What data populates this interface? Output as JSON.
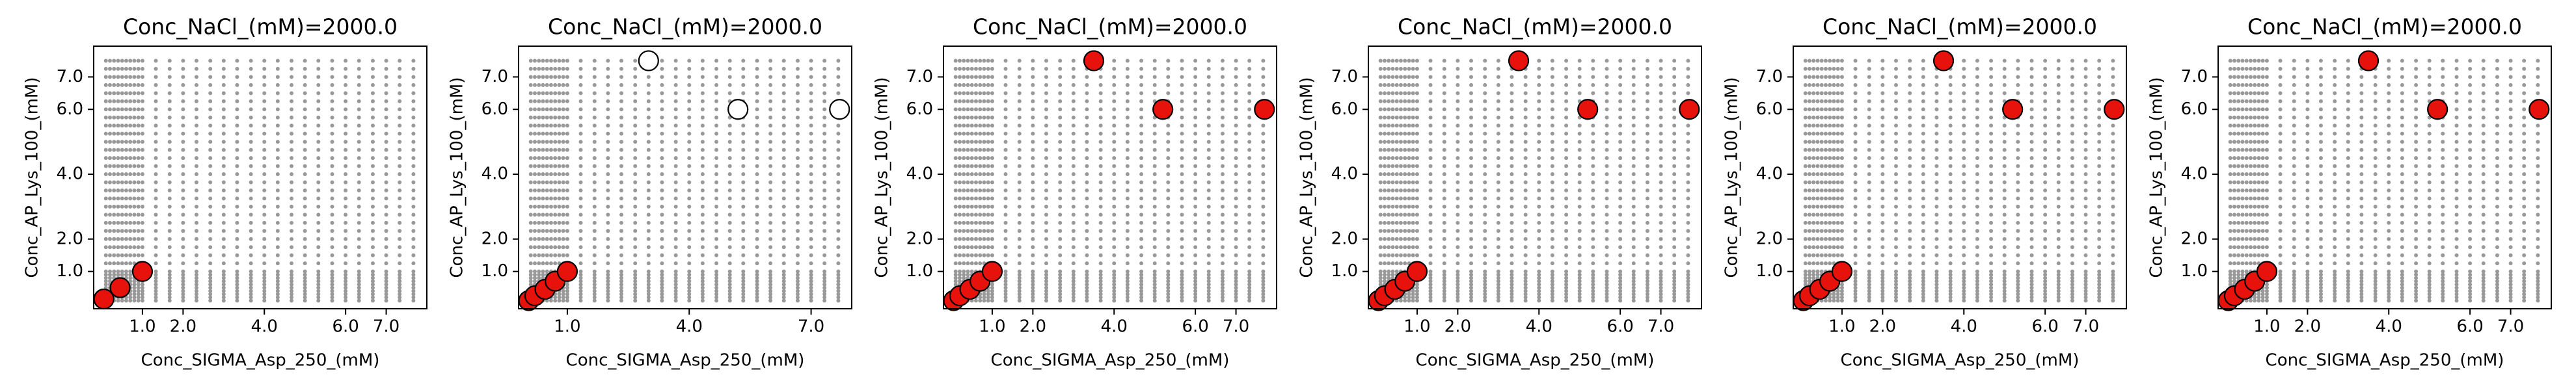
{
  "chart_data": [
    {
      "type": "scatter",
      "title": "Conc_NaCl_(mM)=2000.0",
      "x_label": "Conc_SIGMA_Asp_250_(mM)",
      "y_label": "Conc_AP_Lys_100_(mM)",
      "xlim": [
        -0.2,
        8.0
      ],
      "ylim": [
        -0.15,
        7.95
      ],
      "xticks": [
        {
          "value": 1,
          "label": "1.0"
        },
        {
          "value": 2,
          "label": "2.0"
        },
        {
          "value": 4,
          "label": "4.0"
        },
        {
          "value": 6,
          "label": "6.0"
        },
        {
          "value": 7,
          "label": "7.0"
        }
      ],
      "yticks": [
        {
          "value": 1,
          "label": "1.0"
        },
        {
          "value": 2,
          "label": "2.0"
        },
        {
          "value": 4,
          "label": "4.0"
        },
        {
          "value": 6,
          "label": "6.0"
        },
        {
          "value": 7,
          "label": "7.0"
        }
      ],
      "candidates": {
        "color": "#999999",
        "x_grid": [
          0.1,
          0.2,
          0.3,
          0.4,
          0.5,
          0.6,
          0.7,
          0.8,
          0.9,
          1.0,
          1.33,
          1.67,
          2.0,
          2.33,
          2.67,
          3.0,
          3.33,
          3.67,
          4.0,
          4.33,
          4.67,
          5.0,
          5.33,
          5.67,
          6.0,
          6.33,
          6.67,
          7.0,
          7.33,
          7.67
        ],
        "y_grid": [
          0.1,
          0.2,
          0.3,
          0.4,
          0.5,
          0.6,
          0.7,
          0.8,
          0.9,
          1.0,
          1.25,
          1.5,
          1.75,
          2.0,
          2.25,
          2.5,
          2.75,
          3.0,
          3.25,
          3.5,
          3.75,
          4.0,
          4.25,
          4.5,
          4.75,
          5.0,
          5.25,
          5.5,
          5.75,
          6.0,
          6.25,
          6.5,
          6.75,
          7.0,
          7.25,
          7.5
        ]
      },
      "series": [
        {
          "color": "#e8120c",
          "x": [
            0.05,
            0.45,
            1.0
          ],
          "values": [
            0.15,
            0.5,
            1.0
          ]
        }
      ]
    },
    {
      "type": "scatter",
      "title": "Conc_NaCl_(mM)=2000.0",
      "x_label": "Conc_SIGMA_Asp_250_(mM)",
      "y_label": "Conc_AP_Lys_100_(mM)",
      "xlim": [
        -0.2,
        8.0
      ],
      "ylim": [
        -0.15,
        7.95
      ],
      "xticks": [
        {
          "value": 1,
          "label": "1.0"
        },
        {
          "value": 4,
          "label": "4.0"
        },
        {
          "value": 7,
          "label": "7.0"
        }
      ],
      "yticks": [
        {
          "value": 1,
          "label": "1.0"
        },
        {
          "value": 2,
          "label": "2.0"
        },
        {
          "value": 4,
          "label": "4.0"
        },
        {
          "value": 6,
          "label": "6.0"
        },
        {
          "value": 7,
          "label": "7.0"
        }
      ],
      "candidates": {
        "color": "#999999",
        "x_grid": [
          0.1,
          0.2,
          0.3,
          0.4,
          0.5,
          0.6,
          0.7,
          0.8,
          0.9,
          1.0,
          1.33,
          1.67,
          2.0,
          2.33,
          2.67,
          3.0,
          3.33,
          3.67,
          4.0,
          4.33,
          4.67,
          5.0,
          5.33,
          5.67,
          6.0,
          6.33,
          6.67,
          7.0,
          7.33,
          7.67
        ],
        "y_grid": [
          0.1,
          0.2,
          0.3,
          0.4,
          0.5,
          0.6,
          0.7,
          0.8,
          0.9,
          1.0,
          1.25,
          1.5,
          1.75,
          2.0,
          2.25,
          2.5,
          2.75,
          3.0,
          3.25,
          3.5,
          3.75,
          4.0,
          4.25,
          4.5,
          4.75,
          5.0,
          5.25,
          5.5,
          5.75,
          6.0,
          6.25,
          6.5,
          6.75,
          7.0,
          7.25,
          7.5
        ]
      },
      "series": [
        {
          "color": "#e8120c",
          "x": [
            0.05,
            0.2,
            0.45,
            0.7,
            1.0
          ],
          "values": [
            0.1,
            0.25,
            0.45,
            0.7,
            1.0
          ]
        },
        {
          "color": "#ffffff",
          "x": [
            3.0,
            5.2,
            7.7
          ],
          "values": [
            7.5,
            6.0,
            6.0
          ]
        }
      ]
    },
    {
      "type": "scatter",
      "title": "Conc_NaCl_(mM)=2000.0",
      "x_label": "Conc_SIGMA_Asp_250_(mM)",
      "y_label": "Conc_AP_Lys_100_(mM)",
      "xlim": [
        -0.2,
        8.0
      ],
      "ylim": [
        -0.15,
        7.95
      ],
      "xticks": [
        {
          "value": 1,
          "label": "1.0"
        },
        {
          "value": 2,
          "label": "2.0"
        },
        {
          "value": 4,
          "label": "4.0"
        },
        {
          "value": 6,
          "label": "6.0"
        },
        {
          "value": 7,
          "label": "7.0"
        }
      ],
      "yticks": [
        {
          "value": 1,
          "label": "1.0"
        },
        {
          "value": 2,
          "label": "2.0"
        },
        {
          "value": 4,
          "label": "4.0"
        },
        {
          "value": 6,
          "label": "6.0"
        },
        {
          "value": 7,
          "label": "7.0"
        }
      ],
      "candidates": {
        "color": "#999999",
        "x_grid": [
          0.1,
          0.2,
          0.3,
          0.4,
          0.5,
          0.6,
          0.7,
          0.8,
          0.9,
          1.0,
          1.33,
          1.67,
          2.0,
          2.33,
          2.67,
          3.0,
          3.33,
          3.67,
          4.0,
          4.33,
          4.67,
          5.0,
          5.33,
          5.67,
          6.0,
          6.33,
          6.67,
          7.0,
          7.33,
          7.67
        ],
        "y_grid": [
          0.1,
          0.2,
          0.3,
          0.4,
          0.5,
          0.6,
          0.7,
          0.8,
          0.9,
          1.0,
          1.25,
          1.5,
          1.75,
          2.0,
          2.25,
          2.5,
          2.75,
          3.0,
          3.25,
          3.5,
          3.75,
          4.0,
          4.25,
          4.5,
          4.75,
          5.0,
          5.25,
          5.5,
          5.75,
          6.0,
          6.25,
          6.5,
          6.75,
          7.0,
          7.25,
          7.5
        ]
      },
      "series": [
        {
          "color": "#e8120c",
          "x": [
            0.05,
            0.2,
            0.45,
            0.7,
            1.0,
            3.5,
            5.2,
            7.7
          ],
          "values": [
            0.1,
            0.25,
            0.45,
            0.7,
            1.0,
            7.5,
            6.0,
            6.0
          ]
        }
      ]
    },
    {
      "type": "scatter",
      "title": "Conc_NaCl_(mM)=2000.0",
      "x_label": "Conc_SIGMA_Asp_250_(mM)",
      "y_label": "Conc_AP_Lys_100_(mM)",
      "xlim": [
        -0.2,
        8.0
      ],
      "ylim": [
        -0.15,
        7.95
      ],
      "xticks": [
        {
          "value": 1,
          "label": "1.0"
        },
        {
          "value": 2,
          "label": "2.0"
        },
        {
          "value": 4,
          "label": "4.0"
        },
        {
          "value": 6,
          "label": "6.0"
        },
        {
          "value": 7,
          "label": "7.0"
        }
      ],
      "yticks": [
        {
          "value": 1,
          "label": "1.0"
        },
        {
          "value": 2,
          "label": "2.0"
        },
        {
          "value": 4,
          "label": "4.0"
        },
        {
          "value": 6,
          "label": "6.0"
        },
        {
          "value": 7,
          "label": "7.0"
        }
      ],
      "candidates": {
        "color": "#999999",
        "x_grid": [
          0.1,
          0.2,
          0.3,
          0.4,
          0.5,
          0.6,
          0.7,
          0.8,
          0.9,
          1.0,
          1.33,
          1.67,
          2.0,
          2.33,
          2.67,
          3.0,
          3.33,
          3.67,
          4.0,
          4.33,
          4.67,
          5.0,
          5.33,
          5.67,
          6.0,
          6.33,
          6.67,
          7.0,
          7.33,
          7.67
        ],
        "y_grid": [
          0.1,
          0.2,
          0.3,
          0.4,
          0.5,
          0.6,
          0.7,
          0.8,
          0.9,
          1.0,
          1.25,
          1.5,
          1.75,
          2.0,
          2.25,
          2.5,
          2.75,
          3.0,
          3.25,
          3.5,
          3.75,
          4.0,
          4.25,
          4.5,
          4.75,
          5.0,
          5.25,
          5.5,
          5.75,
          6.0,
          6.25,
          6.5,
          6.75,
          7.0,
          7.25,
          7.5
        ]
      },
      "series": [
        {
          "color": "#e8120c",
          "x": [
            0.05,
            0.2,
            0.45,
            0.7,
            1.0,
            3.5,
            5.2,
            7.7
          ],
          "values": [
            0.1,
            0.25,
            0.45,
            0.7,
            1.0,
            7.5,
            6.0,
            6.0
          ]
        }
      ]
    },
    {
      "type": "scatter",
      "title": "Conc_NaCl_(mM)=2000.0",
      "x_label": "Conc_SIGMA_Asp_250_(mM)",
      "y_label": "Conc_AP_Lys_100_(mM)",
      "xlim": [
        -0.2,
        8.0
      ],
      "ylim": [
        -0.15,
        7.95
      ],
      "xticks": [
        {
          "value": 1,
          "label": "1.0"
        },
        {
          "value": 2,
          "label": "2.0"
        },
        {
          "value": 4,
          "label": "4.0"
        },
        {
          "value": 6,
          "label": "6.0"
        },
        {
          "value": 7,
          "label": "7.0"
        }
      ],
      "yticks": [
        {
          "value": 1,
          "label": "1.0"
        },
        {
          "value": 2,
          "label": "2.0"
        },
        {
          "value": 4,
          "label": "4.0"
        },
        {
          "value": 6,
          "label": "6.0"
        },
        {
          "value": 7,
          "label": "7.0"
        }
      ],
      "candidates": {
        "color": "#999999",
        "x_grid": [
          0.1,
          0.2,
          0.3,
          0.4,
          0.5,
          0.6,
          0.7,
          0.8,
          0.9,
          1.0,
          1.33,
          1.67,
          2.0,
          2.33,
          2.67,
          3.0,
          3.33,
          3.67,
          4.0,
          4.33,
          4.67,
          5.0,
          5.33,
          5.67,
          6.0,
          6.33,
          6.67,
          7.0,
          7.33,
          7.67
        ],
        "y_grid": [
          0.1,
          0.2,
          0.3,
          0.4,
          0.5,
          0.6,
          0.7,
          0.8,
          0.9,
          1.0,
          1.25,
          1.5,
          1.75,
          2.0,
          2.25,
          2.5,
          2.75,
          3.0,
          3.25,
          3.5,
          3.75,
          4.0,
          4.25,
          4.5,
          4.75,
          5.0,
          5.25,
          5.5,
          5.75,
          6.0,
          6.25,
          6.5,
          6.75,
          7.0,
          7.25,
          7.5
        ]
      },
      "series": [
        {
          "color": "#e8120c",
          "x": [
            0.05,
            0.2,
            0.45,
            0.7,
            1.0,
            3.5,
            5.2,
            7.7
          ],
          "values": [
            0.1,
            0.25,
            0.45,
            0.7,
            1.0,
            7.5,
            6.0,
            6.0
          ]
        }
      ]
    },
    {
      "type": "scatter",
      "title": "Conc_NaCl_(mM)=2000.0",
      "x_label": "Conc_SIGMA_Asp_250_(mM)",
      "y_label": "Conc_AP_Lys_100_(mM)",
      "xlim": [
        -0.2,
        8.0
      ],
      "ylim": [
        -0.15,
        7.95
      ],
      "xticks": [
        {
          "value": 1,
          "label": "1.0"
        },
        {
          "value": 2,
          "label": "2.0"
        },
        {
          "value": 4,
          "label": "4.0"
        },
        {
          "value": 6,
          "label": "6.0"
        },
        {
          "value": 7,
          "label": "7.0"
        }
      ],
      "yticks": [
        {
          "value": 1,
          "label": "1.0"
        },
        {
          "value": 2,
          "label": "2.0"
        },
        {
          "value": 4,
          "label": "4.0"
        },
        {
          "value": 6,
          "label": "6.0"
        },
        {
          "value": 7,
          "label": "7.0"
        }
      ],
      "candidates": {
        "color": "#999999",
        "x_grid": [
          0.1,
          0.2,
          0.3,
          0.4,
          0.5,
          0.6,
          0.7,
          0.8,
          0.9,
          1.0,
          1.33,
          1.67,
          2.0,
          2.33,
          2.67,
          3.0,
          3.33,
          3.67,
          4.0,
          4.33,
          4.67,
          5.0,
          5.33,
          5.67,
          6.0,
          6.33,
          6.67,
          7.0,
          7.33,
          7.67
        ],
        "y_grid": [
          0.1,
          0.2,
          0.3,
          0.4,
          0.5,
          0.6,
          0.7,
          0.8,
          0.9,
          1.0,
          1.25,
          1.5,
          1.75,
          2.0,
          2.25,
          2.5,
          2.75,
          3.0,
          3.25,
          3.5,
          3.75,
          4.0,
          4.25,
          4.5,
          4.75,
          5.0,
          5.25,
          5.5,
          5.75,
          6.0,
          6.25,
          6.5,
          6.75,
          7.0,
          7.25,
          7.5
        ]
      },
      "series": [
        {
          "color": "#e8120c",
          "x": [
            0.05,
            0.2,
            0.45,
            0.7,
            1.0,
            3.5,
            5.2,
            7.7
          ],
          "values": [
            0.1,
            0.25,
            0.45,
            0.7,
            1.0,
            7.5,
            6.0,
            6.0
          ]
        }
      ]
    }
  ]
}
